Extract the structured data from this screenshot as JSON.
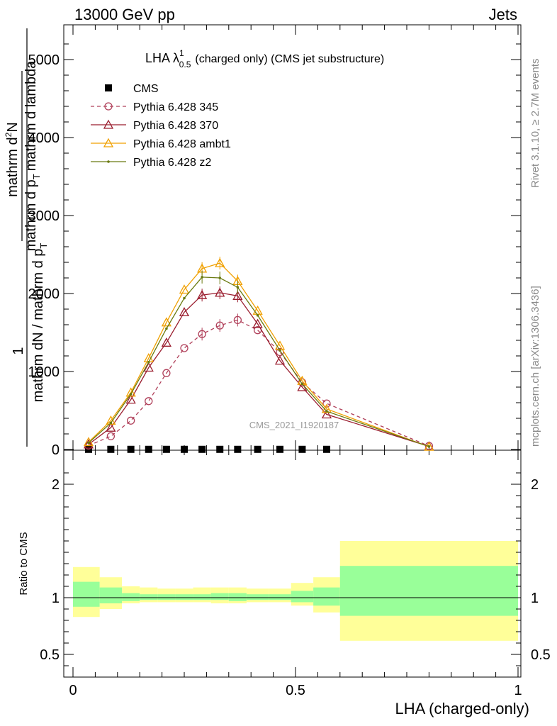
{
  "header": {
    "left": "13000 GeV pp",
    "right": "Jets"
  },
  "side_labels": {
    "rivet": "Rivet 3.1.10, ≥ 2.7M events",
    "mcplots": "mcplots.cern.ch [arXiv:1306.3436]"
  },
  "watermark": "CMS_2021_I1920187",
  "chart_data": [
    {
      "type": "line",
      "title": "LHA λ",
      "title_sup": "1",
      "title_sub": "0.5",
      "title_rest": "(charged only) (CMS jet substructure)",
      "xlim": [
        0,
        1
      ],
      "ylim": [
        0,
        5400
      ],
      "y_ticks": [
        0,
        1000,
        2000,
        3000,
        4000,
        5000
      ],
      "y_tick_labels": [
        "0",
        "1000",
        "2000",
        "3000",
        "4000",
        "5000"
      ],
      "ylabel_num": "1",
      "ylabel_den": "mathrm dN / mathrm d p",
      "ylabel_den_sub": "T",
      "ylabel_num2": "mathrm d",
      "ylabel_num2_sup": "2",
      "ylabel_num2_rest": "N",
      "ylabel_den2": "mathrm d p",
      "ylabel_den2_sub": "T",
      "ylabel_den2_rest": "mathrm d lambda",
      "grid": false,
      "legend_position": "top-left",
      "series": [
        {
          "name": "CMS",
          "color": "#000000",
          "marker": "square",
          "x": [
            0.035,
            0.085,
            0.13,
            0.17,
            0.21,
            0.25,
            0.29,
            0.33,
            0.37,
            0.415,
            0.465,
            0.515,
            0.57
          ],
          "y": [
            2,
            2,
            2,
            2,
            2,
            2,
            2,
            2,
            2,
            2,
            2,
            2,
            2
          ]
        },
        {
          "name": "Pythia 6.428 345",
          "color": "#b0405a",
          "marker": "circle",
          "dash": true,
          "x": [
            0.035,
            0.085,
            0.13,
            0.17,
            0.21,
            0.25,
            0.29,
            0.33,
            0.37,
            0.415,
            0.465,
            0.515,
            0.57,
            0.8
          ],
          "y": [
            50,
            170,
            370,
            620,
            980,
            1300,
            1480,
            1590,
            1660,
            1530,
            1250,
            860,
            590,
            45
          ]
        },
        {
          "name": "Pythia 6.428 370",
          "color": "#9a1d2e",
          "marker": "triangle",
          "x": [
            0.035,
            0.085,
            0.13,
            0.17,
            0.21,
            0.25,
            0.29,
            0.33,
            0.37,
            0.415,
            0.465,
            0.515,
            0.57,
            0.8
          ],
          "y": [
            65,
            280,
            640,
            1050,
            1370,
            1760,
            1980,
            2010,
            1970,
            1610,
            1140,
            800,
            450,
            40
          ]
        },
        {
          "name": "Pythia 6.428 ambt1",
          "color": "#f0a000",
          "marker": "triangle",
          "x": [
            0.035,
            0.085,
            0.13,
            0.17,
            0.21,
            0.25,
            0.29,
            0.33,
            0.37,
            0.415,
            0.465,
            0.515,
            0.57,
            0.8
          ],
          "y": [
            95,
            370,
            730,
            1170,
            1630,
            2050,
            2320,
            2390,
            2160,
            1780,
            1330,
            880,
            520,
            35
          ]
        },
        {
          "name": "Pythia 6.428 z2",
          "color": "#6a7a10",
          "marker": "dot",
          "x": [
            0.035,
            0.085,
            0.13,
            0.17,
            0.21,
            0.25,
            0.29,
            0.33,
            0.37,
            0.415,
            0.465,
            0.515,
            0.57,
            0.8
          ],
          "y": [
            85,
            340,
            710,
            1120,
            1550,
            1940,
            2210,
            2200,
            2080,
            1720,
            1270,
            840,
            490,
            38
          ]
        }
      ]
    },
    {
      "type": "area",
      "ylabel": "Ratio to CMS",
      "xlabel": "LHA (charged-only)",
      "xlim": [
        0,
        1
      ],
      "ylim": [
        0.3,
        2.3
      ],
      "x_ticks": [
        0,
        0.5,
        1
      ],
      "x_tick_labels": [
        "0",
        "0.5",
        "1"
      ],
      "y_ticks": [
        0.5,
        1,
        2
      ],
      "y_tick_labels": [
        "0.5",
        "1",
        "2"
      ],
      "reference_line": 1,
      "bins": [
        {
          "lo": 0.0,
          "hi": 0.06,
          "y_lo": 0.83,
          "y_hi": 1.27,
          "g_lo": 0.92,
          "g_hi": 1.14
        },
        {
          "lo": 0.06,
          "hi": 0.11,
          "y_lo": 0.9,
          "y_hi": 1.18,
          "g_lo": 0.95,
          "g_hi": 1.09
        },
        {
          "lo": 0.11,
          "hi": 0.15,
          "y_lo": 0.95,
          "y_hi": 1.1,
          "g_lo": 0.97,
          "g_hi": 1.04
        },
        {
          "lo": 0.15,
          "hi": 0.19,
          "y_lo": 0.96,
          "y_hi": 1.09,
          "g_lo": 0.98,
          "g_hi": 1.03
        },
        {
          "lo": 0.19,
          "hi": 0.23,
          "y_lo": 0.96,
          "y_hi": 1.08,
          "g_lo": 0.98,
          "g_hi": 1.03
        },
        {
          "lo": 0.23,
          "hi": 0.27,
          "y_lo": 0.96,
          "y_hi": 1.08,
          "g_lo": 0.98,
          "g_hi": 1.03
        },
        {
          "lo": 0.27,
          "hi": 0.31,
          "y_lo": 0.96,
          "y_hi": 1.09,
          "g_lo": 0.98,
          "g_hi": 1.03
        },
        {
          "lo": 0.31,
          "hi": 0.35,
          "y_lo": 0.95,
          "y_hi": 1.09,
          "g_lo": 0.98,
          "g_hi": 1.04
        },
        {
          "lo": 0.35,
          "hi": 0.39,
          "y_lo": 0.95,
          "y_hi": 1.09,
          "g_lo": 0.97,
          "g_hi": 1.04
        },
        {
          "lo": 0.39,
          "hi": 0.44,
          "y_lo": 0.96,
          "y_hi": 1.08,
          "g_lo": 0.98,
          "g_hi": 1.03
        },
        {
          "lo": 0.44,
          "hi": 0.49,
          "y_lo": 0.96,
          "y_hi": 1.08,
          "g_lo": 0.98,
          "g_hi": 1.03
        },
        {
          "lo": 0.49,
          "hi": 0.54,
          "y_lo": 0.93,
          "y_hi": 1.13,
          "g_lo": 0.96,
          "g_hi": 1.06
        },
        {
          "lo": 0.54,
          "hi": 0.6,
          "y_lo": 0.87,
          "y_hi": 1.18,
          "g_lo": 0.93,
          "g_hi": 1.09
        },
        {
          "lo": 0.6,
          "hi": 1.0,
          "y_lo": 0.62,
          "y_hi": 1.5,
          "g_lo": 0.84,
          "g_hi": 1.28
        }
      ],
      "band_colors": {
        "outer": "#ffff99",
        "inner": "#99ff99"
      }
    }
  ]
}
